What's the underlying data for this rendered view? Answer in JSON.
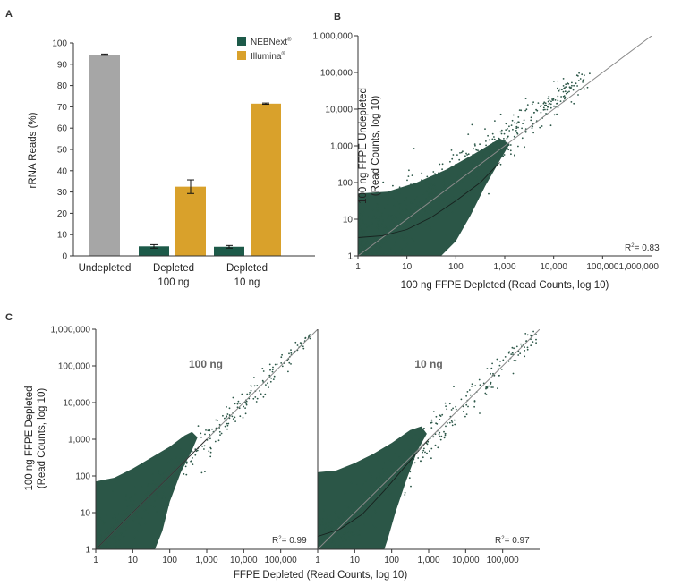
{
  "colors": {
    "nebnext": "#1d5a49",
    "illumina": "#d9a12b",
    "undepleted": "#a6a6a6",
    "scatter": "#2b5647"
  },
  "chart_data": [
    {
      "panel": "A",
      "type": "bar",
      "ylabel": "rRNA Reads (%)",
      "ylim": [
        0,
        100
      ],
      "yticks": [
        0,
        10,
        20,
        30,
        40,
        50,
        60,
        70,
        80,
        90,
        100
      ],
      "categories": [
        {
          "line1": "Undepleted",
          "line2": ""
        },
        {
          "line1": "Depleted",
          "line2": "100 ng"
        },
        {
          "line1": "Depleted",
          "line2": "10 ng"
        }
      ],
      "undepleted": {
        "value": 94.5,
        "error": 0.3
      },
      "series": [
        {
          "name": "NEBNext",
          "mark": "®",
          "values": [
            null,
            4.5,
            4.3
          ],
          "errors": [
            null,
            0.8,
            0.6
          ]
        },
        {
          "name": "Illumina",
          "mark": "®",
          "values": [
            null,
            32.5,
            71.5
          ],
          "errors": [
            null,
            3.2,
            0.3
          ]
        }
      ],
      "legend_position": "top-right"
    },
    {
      "panel": "B",
      "type": "scatter",
      "scale": "log10",
      "xlabel": "100 ng FFPE Depleted (Read Counts, log 10)",
      "ylabel_line1": "100 ng FFPE Undepleted",
      "ylabel_line2": "(Read Counts, log 10)",
      "xticks": [
        "1",
        "10",
        "100",
        "1,000",
        "10,000",
        "100,0001,000,000"
      ],
      "yticks": [
        "1",
        "10",
        "100",
        "1,000",
        "10,000",
        "100,000",
        "1,000,000"
      ],
      "xlim": [
        1,
        1000000
      ],
      "ylim": [
        1,
        1000000
      ],
      "r2_label": "R",
      "r2_value": "= 0.83"
    },
    {
      "panel": "C",
      "type": "scatter",
      "scale": "log10",
      "xlabel": "FFPE Depleted (Read Counts, log 10)",
      "ylabel_line1": "100 ng FFPE Depleted",
      "ylabel_line2": "(Read Counts, log 10)",
      "yticks": [
        "1",
        "10",
        "100",
        "1,000",
        "10,000",
        "100,000",
        "1,000,000"
      ],
      "xticks": [
        "1",
        "10",
        "100",
        "1,000",
        "10,000",
        "100,000"
      ],
      "xlim": [
        1,
        1000000
      ],
      "ylim": [
        1,
        1000000
      ],
      "subpanels": [
        {
          "title": "100 ng",
          "r2_label": "R",
          "r2_value": "= 0.99"
        },
        {
          "title": "10 ng",
          "r2_label": "R",
          "r2_value": "= 0.97"
        }
      ]
    }
  ]
}
